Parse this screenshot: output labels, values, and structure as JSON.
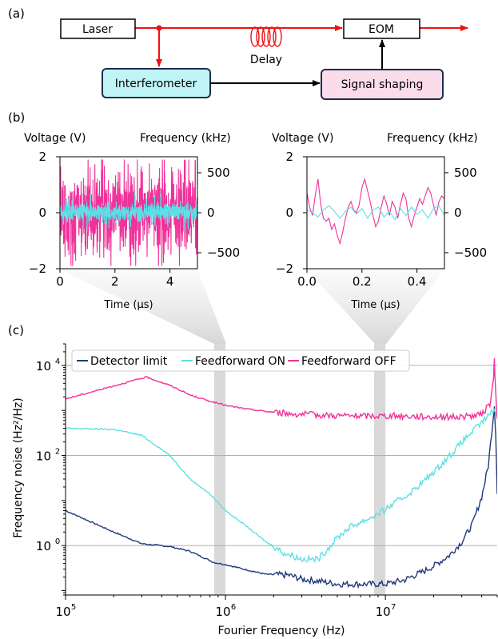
{
  "colors": {
    "laser_path": "#ee1111",
    "interferometer_fill": "#bff5f7",
    "shaping_fill": "#fbdcea",
    "box_stroke": "#1f2d4a",
    "detector": "#1f3a7a",
    "ff_on": "#5ce0e6",
    "ff_off": "#f0329a",
    "highlight": "#cccccc"
  },
  "panel_a": {
    "label": "(a)",
    "laser": "Laser",
    "eom": "EOM",
    "delay": "Delay",
    "interferometer": "Interferometer",
    "signal_shaping": "Signal shaping"
  },
  "panel_b": {
    "label": "(b)",
    "plots": [
      {
        "left_axis_label": "Voltage (V)",
        "right_axis_label": "Frequency (kHz)",
        "xlabel": "Time (µs)",
        "xlim": [
          0,
          5
        ],
        "xticks": [
          "0",
          "2",
          "4"
        ],
        "ylim_voltage": [
          -2,
          2
        ],
        "yticks_voltage": [
          "2",
          "0",
          "−2"
        ],
        "ylim_frequency": [
          -700,
          700
        ],
        "yticks_frequency": [
          "500",
          "0",
          "−500"
        ],
        "series": [
          {
            "trace": "feedforward_off",
            "color": "#f0329a",
            "amplitude_v": 0.7
          },
          {
            "trace": "feedforward_on",
            "color": "#5ce0e6",
            "amplitude_v": 0.18
          }
        ]
      },
      {
        "left_axis_label": "Voltage (V)",
        "right_axis_label": "Frequency (kHz)",
        "xlabel": "Time (µs)",
        "xlim": [
          0,
          0.5
        ],
        "xticks": [
          "0.0",
          "0.2",
          "0.4"
        ],
        "ylim_voltage": [
          -2,
          2
        ],
        "yticks_voltage": [
          "2",
          "0",
          "−2"
        ],
        "ylim_frequency": [
          -700,
          700
        ],
        "yticks_frequency": [
          "500",
          "0",
          "−500"
        ],
        "series": [
          {
            "trace": "feedforward_off",
            "color": "#f0329a",
            "points": [
              [
                0.0,
                0.7
              ],
              [
                0.01,
                0.2
              ],
              [
                0.02,
                -0.1
              ],
              [
                0.03,
                0.6
              ],
              [
                0.04,
                1.2
              ],
              [
                0.05,
                0.3
              ],
              [
                0.06,
                -0.2
              ],
              [
                0.07,
                -0.3
              ],
              [
                0.08,
                -0.2
              ],
              [
                0.09,
                -0.6
              ],
              [
                0.1,
                -0.4
              ],
              [
                0.11,
                -0.8
              ],
              [
                0.12,
                -1.1
              ],
              [
                0.13,
                -0.7
              ],
              [
                0.14,
                -0.2
              ],
              [
                0.15,
                0.2
              ],
              [
                0.16,
                0.4
              ],
              [
                0.17,
                0.1
              ],
              [
                0.18,
                0.0
              ],
              [
                0.19,
                0.3
              ],
              [
                0.2,
                0.9
              ],
              [
                0.21,
                1.2
              ],
              [
                0.22,
                0.8
              ],
              [
                0.23,
                0.4
              ],
              [
                0.24,
                -0.1
              ],
              [
                0.25,
                -0.5
              ],
              [
                0.26,
                -0.3
              ],
              [
                0.27,
                0.2
              ],
              [
                0.28,
                0.6
              ],
              [
                0.29,
                0.3
              ],
              [
                0.3,
                -0.1
              ],
              [
                0.31,
                0.4
              ],
              [
                0.32,
                0.2
              ],
              [
                0.33,
                -0.2
              ],
              [
                0.34,
                0.3
              ],
              [
                0.35,
                0.7
              ],
              [
                0.36,
                0.5
              ],
              [
                0.37,
                -0.2
              ],
              [
                0.38,
                -0.5
              ],
              [
                0.39,
                -0.1
              ],
              [
                0.4,
                0.2
              ],
              [
                0.41,
                0.5
              ],
              [
                0.42,
                0.3
              ],
              [
                0.43,
                0.6
              ],
              [
                0.44,
                0.9
              ],
              [
                0.45,
                0.7
              ],
              [
                0.46,
                0.3
              ],
              [
                0.47,
                -0.1
              ],
              [
                0.48,
                0.4
              ],
              [
                0.49,
                0.6
              ],
              [
                0.5,
                0.5
              ]
            ]
          },
          {
            "trace": "feedforward_on",
            "color": "#5ce0e6",
            "points": [
              [
                0.0,
                0.1
              ],
              [
                0.02,
                0.0
              ],
              [
                0.04,
                -0.15
              ],
              [
                0.06,
                0.1
              ],
              [
                0.08,
                0.25
              ],
              [
                0.1,
                0.05
              ],
              [
                0.12,
                -0.2
              ],
              [
                0.14,
                0.05
              ],
              [
                0.16,
                0.2
              ],
              [
                0.18,
                -0.05
              ],
              [
                0.2,
                0.15
              ],
              [
                0.22,
                -0.2
              ],
              [
                0.24,
                0.1
              ],
              [
                0.26,
                0.2
              ],
              [
                0.28,
                -0.15
              ],
              [
                0.3,
                0.05
              ],
              [
                0.32,
                -0.25
              ],
              [
                0.34,
                0.15
              ],
              [
                0.36,
                -0.1
              ],
              [
                0.38,
                0.2
              ],
              [
                0.4,
                -0.05
              ],
              [
                0.42,
                0.1
              ],
              [
                0.44,
                -0.2
              ],
              [
                0.46,
                0.15
              ],
              [
                0.48,
                0.25
              ],
              [
                0.5,
                -0.1
              ]
            ]
          }
        ]
      }
    ]
  },
  "panel_c": {
    "label": "(c)",
    "chart_data": {
      "type": "line",
      "x_scale": "log",
      "y_scale": "log",
      "xlabel": "Fourier Frequency (Hz)",
      "ylabel": "Frequency noise (Hz²/Hz)",
      "xlim": [
        100000,
        50000000
      ],
      "ylim": [
        0.08,
        30000
      ],
      "grid": "horizontal",
      "legend_position": "top",
      "xticks": [
        {
          "value": 100000,
          "base": "10",
          "exp": "5"
        },
        {
          "value": 1000000,
          "base": "10",
          "exp": "6"
        },
        {
          "value": 10000000,
          "base": "10",
          "exp": "7"
        }
      ],
      "yticks": [
        {
          "value": 1,
          "base": "10",
          "exp": "0"
        },
        {
          "value": 100,
          "base": "10",
          "exp": "2"
        },
        {
          "value": 10000,
          "base": "10",
          "exp": "4"
        }
      ],
      "highlight_bands": [
        [
          850000,
          1000000
        ],
        [
          8500000,
          10000000
        ]
      ],
      "series": [
        {
          "name": "Detector limit",
          "color": "#1f3a7a",
          "points": [
            [
              100000,
              6
            ],
            [
              200000,
              2
            ],
            [
              300000,
              1.1
            ],
            [
              450000,
              0.95
            ],
            [
              600000,
              0.75
            ],
            [
              850000,
              0.42
            ],
            [
              1000000,
              0.38
            ],
            [
              1300000,
              0.3
            ],
            [
              1800000,
              0.23
            ],
            [
              2500000,
              0.22
            ],
            [
              3000000,
              0.18
            ],
            [
              4000000,
              0.16
            ],
            [
              5000000,
              0.14
            ],
            [
              7000000,
              0.14
            ],
            [
              10000000,
              0.14
            ],
            [
              13000000,
              0.17
            ],
            [
              17000000,
              0.26
            ],
            [
              20000000,
              0.35
            ],
            [
              25000000,
              0.6
            ],
            [
              30000000,
              1.2
            ],
            [
              35000000,
              3
            ],
            [
              40000000,
              12
            ],
            [
              44000000,
              60
            ],
            [
              47000000,
              600
            ],
            [
              48000000,
              1300
            ],
            [
              49000000,
              300
            ],
            [
              50000000,
              14
            ]
          ]
        },
        {
          "name": "Feedforward ON",
          "color": "#5ce0e6",
          "points": [
            [
              100000,
              400
            ],
            [
              200000,
              380
            ],
            [
              300000,
              280
            ],
            [
              450000,
              100
            ],
            [
              600000,
              30
            ],
            [
              800000,
              14
            ],
            [
              1000000,
              6
            ],
            [
              1300000,
              3
            ],
            [
              1800000,
              1.2
            ],
            [
              2300000,
              0.7
            ],
            [
              3000000,
              0.5
            ],
            [
              3800000,
              0.5
            ],
            [
              4300000,
              0.8
            ],
            [
              5000000,
              1.5
            ],
            [
              6000000,
              2.6
            ],
            [
              7000000,
              3.3
            ],
            [
              9000000,
              5
            ],
            [
              11000000,
              8
            ],
            [
              14000000,
              14
            ],
            [
              18000000,
              30
            ],
            [
              22000000,
              60
            ],
            [
              27000000,
              130
            ],
            [
              32000000,
              250
            ],
            [
              38000000,
              450
            ],
            [
              43000000,
              700
            ],
            [
              46000000,
              900
            ],
            [
              48000000,
              1100
            ],
            [
              50000000,
              700
            ]
          ]
        },
        {
          "name": "Feedforward OFF",
          "color": "#f0329a",
          "points": [
            [
              100000,
              1800
            ],
            [
              200000,
              3500
            ],
            [
              320000,
              5500
            ],
            [
              450000,
              3600
            ],
            [
              600000,
              2200
            ],
            [
              800000,
              1600
            ],
            [
              1000000,
              1300
            ],
            [
              1300000,
              1100
            ],
            [
              1800000,
              950
            ],
            [
              2500000,
              850
            ],
            [
              3500000,
              800
            ],
            [
              5000000,
              770
            ],
            [
              7000000,
              750
            ],
            [
              10000000,
              760
            ],
            [
              15000000,
              740
            ],
            [
              20000000,
              720
            ],
            [
              30000000,
              720
            ],
            [
              40000000,
              800
            ],
            [
              45000000,
              1400
            ],
            [
              47500000,
              5000
            ],
            [
              48000000,
              15000
            ],
            [
              48500000,
              5000
            ],
            [
              50000000,
              650
            ]
          ]
        }
      ]
    }
  }
}
